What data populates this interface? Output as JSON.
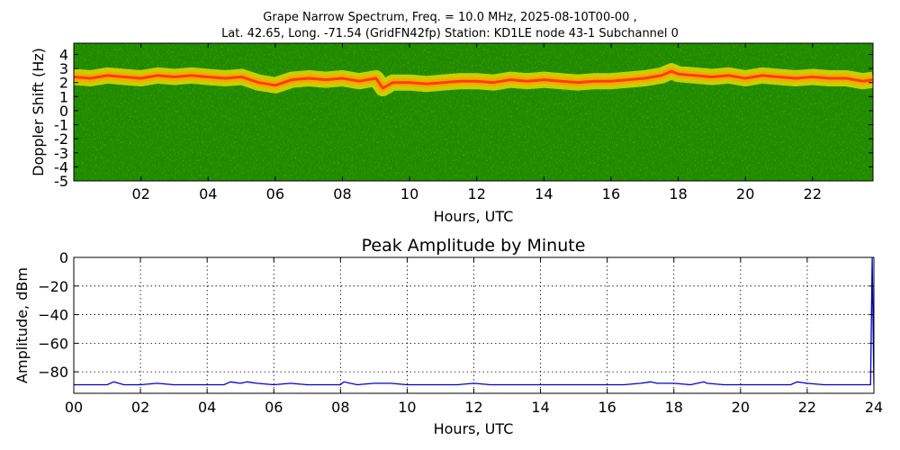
{
  "figure": {
    "title_line1": "Grape Narrow Spectrum, Freq. = 10.0 MHz, 2025-08-10T00-00 ,",
    "title_line2": "Lat.  42.65, Long. -71.54 (GridFN42fp) Station: KD1LE node 43-1 Subchannel 0"
  },
  "chart_data": [
    {
      "type": "heatmap",
      "title": "",
      "xlabel": "Hours, UTC",
      "ylabel": "Doppler Shift (Hz)",
      "xlim": [
        0,
        23.8
      ],
      "ylim": [
        -5,
        4.8
      ],
      "x_ticks": [
        2,
        4,
        6,
        8,
        10,
        12,
        14,
        16,
        18,
        20,
        22
      ],
      "x_tick_labels": [
        "02",
        "04",
        "06",
        "08",
        "10",
        "12",
        "14",
        "16",
        "18",
        "20",
        "22"
      ],
      "y_ticks": [
        4,
        3,
        2,
        1,
        0,
        -1,
        -2,
        -3,
        -4,
        -5
      ],
      "y_tick_labels": [
        "4",
        "3",
        "2",
        "1",
        "0",
        "-1",
        "-2",
        "-3",
        "-4",
        "-5"
      ],
      "background_color": "#1f8a00",
      "signal_color": "#ff3c00",
      "signal_halo_color": "#ffe600",
      "signal_doppler_hz": {
        "x": [
          0,
          0.5,
          1,
          1.5,
          2,
          2.5,
          3,
          3.5,
          4,
          4.5,
          5,
          5.5,
          6,
          6.5,
          7,
          7.5,
          8,
          8.5,
          9,
          9.2,
          9.5,
          10,
          10.5,
          11,
          11.5,
          12,
          12.5,
          13,
          13.5,
          14,
          14.5,
          15,
          15.5,
          16,
          16.5,
          17,
          17.5,
          17.8,
          18,
          18.5,
          19,
          19.5,
          20,
          20.5,
          21,
          21.5,
          22,
          22.5,
          23,
          23.5,
          23.8
        ],
        "y": [
          2.4,
          2.3,
          2.5,
          2.4,
          2.3,
          2.5,
          2.4,
          2.5,
          2.4,
          2.3,
          2.4,
          2.0,
          1.8,
          2.2,
          2.3,
          2.2,
          2.3,
          2.1,
          2.3,
          1.6,
          2.0,
          2.0,
          1.9,
          2.0,
          2.1,
          2.1,
          2.0,
          2.2,
          2.1,
          2.2,
          2.1,
          2.0,
          2.1,
          2.1,
          2.2,
          2.3,
          2.5,
          2.8,
          2.6,
          2.5,
          2.4,
          2.5,
          2.3,
          2.5,
          2.4,
          2.3,
          2.4,
          2.3,
          2.3,
          2.1,
          2.2
        ]
      }
    },
    {
      "type": "line",
      "title": "Peak Amplitude by Minute",
      "xlabel": "Hours, UTC",
      "ylabel": "Amplitude, dBm",
      "xlim": [
        0,
        24
      ],
      "ylim": [
        -95,
        0
      ],
      "grid": true,
      "line_color": "#0000cc",
      "x_ticks": [
        0,
        2,
        4,
        6,
        8,
        10,
        12,
        14,
        16,
        18,
        20,
        22,
        24
      ],
      "x_tick_labels": [
        "00",
        "02",
        "04",
        "06",
        "08",
        "10",
        "12",
        "14",
        "16",
        "18",
        "20",
        "22",
        "24"
      ],
      "y_ticks": [
        0,
        -20,
        -40,
        -60,
        -80
      ],
      "y_tick_labels": [
        "0",
        "−20",
        "−40",
        "−60",
        "−80"
      ],
      "series": [
        {
          "x": [
            0,
            0.5,
            1,
            1.2,
            1.5,
            2,
            2.5,
            3,
            3.5,
            4,
            4.5,
            4.7,
            5,
            5.2,
            5.5,
            6,
            6.5,
            7,
            7.5,
            8,
            8.1,
            8.5,
            9,
            9.5,
            10,
            10.5,
            11,
            11.5,
            12,
            12.5,
            13,
            13.5,
            14,
            14.5,
            15,
            15.5,
            16,
            16.5,
            17,
            17.3,
            17.5,
            18,
            18.5,
            18.9,
            19,
            19.5,
            20,
            20.5,
            21,
            21.5,
            21.7,
            22,
            22.5,
            23,
            23.5,
            23.9,
            23.95,
            24
          ],
          "y": [
            -89,
            -89,
            -89,
            -87,
            -89,
            -89,
            -88,
            -89,
            -89,
            -89,
            -89,
            -87,
            -88,
            -87,
            -88,
            -89,
            -88,
            -89,
            -89,
            -89,
            -87,
            -89,
            -88,
            -88,
            -89,
            -89,
            -89,
            -89,
            -88,
            -89,
            -89,
            -89,
            -89,
            -89,
            -89,
            -89,
            -89,
            -89,
            -88,
            -87,
            -88,
            -88,
            -89,
            -87,
            -88,
            -89,
            -89,
            -89,
            -89,
            -89,
            -87,
            -88,
            -89,
            -89,
            -89,
            -89,
            0,
            -89
          ]
        }
      ]
    }
  ]
}
